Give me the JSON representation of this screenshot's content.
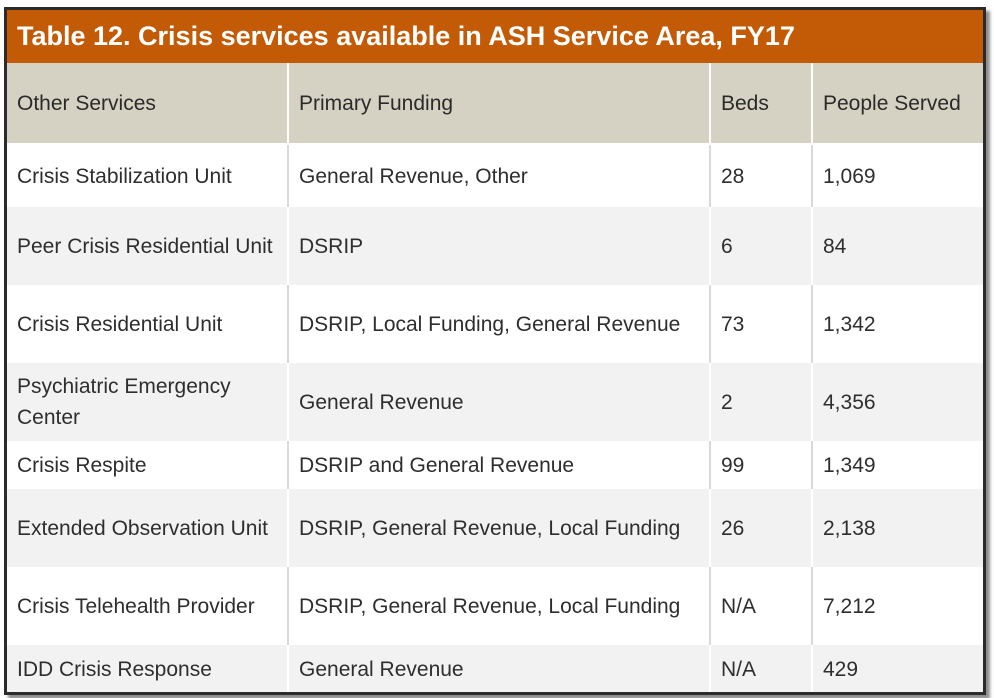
{
  "title": "Table 12. Crisis services available in ASH Service Area, FY17",
  "colors": {
    "title_bar": "#c25a06",
    "header_row": "#d6d2c3",
    "stripe": "#f2f2f2",
    "border": "#2b2b2b"
  },
  "columns": [
    "Other Services",
    "Primary Funding",
    "Beds",
    "People Served"
  ],
  "rows": [
    {
      "service": "Crisis Stabilization Unit",
      "funding": "General Revenue, Other",
      "beds": "28",
      "served": "1,069"
    },
    {
      "service": "Peer Crisis Residential Unit",
      "funding": "DSRIP",
      "beds": "6",
      "served": "84"
    },
    {
      "service": "Crisis Residential Unit",
      "funding": "DSRIP, Local Funding, General Revenue",
      "beds": "73",
      "served": "1,342"
    },
    {
      "service": "Psychiatric Emergency Center",
      "funding": "General Revenue",
      "beds": "2",
      "served": "4,356"
    },
    {
      "service": "Crisis Respite",
      "funding": "DSRIP and General Revenue",
      "beds": "99",
      "served": "1,349"
    },
    {
      "service": "Extended Observation Unit",
      "funding": "DSRIP, General Revenue, Local Funding",
      "beds": "26",
      "served": "2,138"
    },
    {
      "service": "Crisis Telehealth Provider",
      "funding": "DSRIP, General Revenue, Local Funding",
      "beds": "N/A",
      "served": "7,212"
    },
    {
      "service": "IDD Crisis Response",
      "funding": "General Revenue",
      "beds": "N/A",
      "served": "429"
    }
  ]
}
